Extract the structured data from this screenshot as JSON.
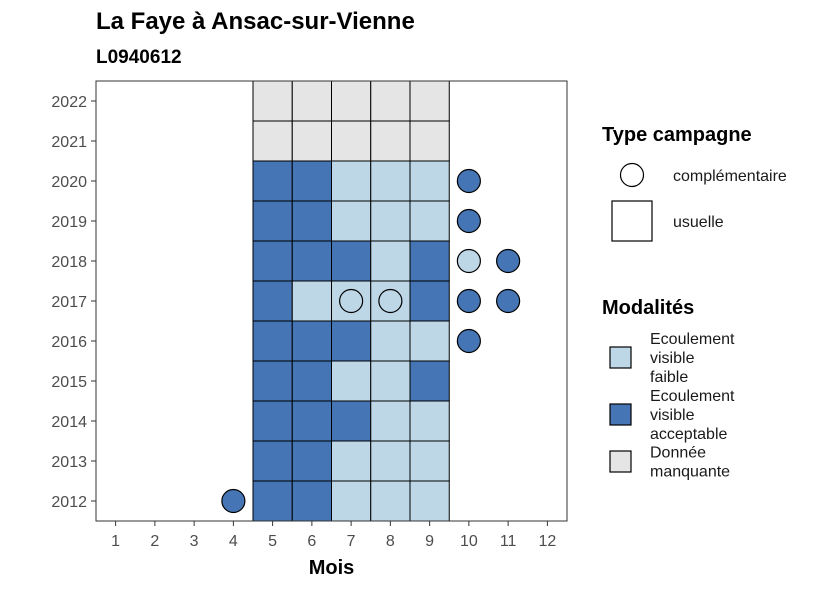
{
  "chart_data": {
    "type": "heatmap",
    "title": "La Faye à Ansac-sur-Vienne",
    "subtitle": "L0940612",
    "xlabel": "Mois",
    "ylabel": "",
    "x_ticks": [
      "1",
      "2",
      "3",
      "4",
      "5",
      "6",
      "7",
      "8",
      "9",
      "10",
      "11",
      "12"
    ],
    "y_ticks": [
      "2012",
      "2013",
      "2014",
      "2015",
      "2016",
      "2017",
      "2018",
      "2019",
      "2020",
      "2021",
      "2022"
    ],
    "xlim": [
      0.5,
      12.5
    ],
    "ylim": [
      2011.5,
      2022.5
    ],
    "grid": false,
    "legend_position": "right",
    "colors": {
      "Ecoulement visible faible": "#bdd7e7",
      "Ecoulement visible acceptable": "#4575b4",
      "Donnée manquante": "#e5e5e5"
    },
    "legends": {
      "shape": {
        "title": "Type campagne",
        "items": [
          {
            "label": "complémentaire",
            "shape": "circle"
          },
          {
            "label": "usuelle",
            "shape": "square"
          }
        ]
      },
      "fill": {
        "title": "Modalités",
        "items": [
          {
            "lines": [
              "Ecoulement",
              "visible",
              "faible"
            ],
            "key": "Ecoulement visible faible"
          },
          {
            "lines": [
              "Ecoulement",
              "visible",
              "acceptable"
            ],
            "key": "Ecoulement visible acceptable"
          },
          {
            "lines": [
              "Donnée",
              "manquante"
            ],
            "key": "Donnée manquante"
          }
        ]
      }
    },
    "usuelle": [
      {
        "year": 2012,
        "cells": [
          "Ecoulement visible acceptable",
          "Ecoulement visible acceptable",
          "Ecoulement visible faible",
          "Ecoulement visible faible",
          "Ecoulement visible faible"
        ]
      },
      {
        "year": 2013,
        "cells": [
          "Ecoulement visible acceptable",
          "Ecoulement visible acceptable",
          "Ecoulement visible faible",
          "Ecoulement visible faible",
          "Ecoulement visible faible"
        ]
      },
      {
        "year": 2014,
        "cells": [
          "Ecoulement visible acceptable",
          "Ecoulement visible acceptable",
          "Ecoulement visible acceptable",
          "Ecoulement visible faible",
          "Ecoulement visible faible"
        ]
      },
      {
        "year": 2015,
        "cells": [
          "Ecoulement visible acceptable",
          "Ecoulement visible acceptable",
          "Ecoulement visible faible",
          "Ecoulement visible faible",
          "Ecoulement visible acceptable"
        ]
      },
      {
        "year": 2016,
        "cells": [
          "Ecoulement visible acceptable",
          "Ecoulement visible acceptable",
          "Ecoulement visible acceptable",
          "Ecoulement visible faible",
          "Ecoulement visible faible"
        ]
      },
      {
        "year": 2017,
        "cells": [
          "Ecoulement visible acceptable",
          "Ecoulement visible faible",
          "Ecoulement visible faible",
          "Ecoulement visible faible",
          "Ecoulement visible acceptable"
        ]
      },
      {
        "year": 2018,
        "cells": [
          "Ecoulement visible acceptable",
          "Ecoulement visible acceptable",
          "Ecoulement visible acceptable",
          "Ecoulement visible faible",
          "Ecoulement visible acceptable"
        ]
      },
      {
        "year": 2019,
        "cells": [
          "Ecoulement visible acceptable",
          "Ecoulement visible acceptable",
          "Ecoulement visible faible",
          "Ecoulement visible faible",
          "Ecoulement visible faible"
        ]
      },
      {
        "year": 2020,
        "cells": [
          "Ecoulement visible acceptable",
          "Ecoulement visible acceptable",
          "Ecoulement visible faible",
          "Ecoulement visible faible",
          "Ecoulement visible faible"
        ]
      },
      {
        "year": 2021,
        "cells": [
          "Donnée manquante",
          "Donnée manquante",
          "Donnée manquante",
          "Donnée manquante",
          "Donnée manquante"
        ]
      },
      {
        "year": 2022,
        "cells": [
          "Donnée manquante",
          "Donnée manquante",
          "Donnée manquante",
          "Donnée manquante",
          "Donnée manquante"
        ]
      }
    ],
    "usuelle_months": [
      5,
      6,
      7,
      8,
      9
    ],
    "complementaire": [
      {
        "year": 2012,
        "month": 4,
        "value": "Ecoulement visible acceptable"
      },
      {
        "year": 2016,
        "month": 10,
        "value": "Ecoulement visible acceptable"
      },
      {
        "year": 2017,
        "month": 7,
        "value": "Ecoulement visible faible"
      },
      {
        "year": 2017,
        "month": 8,
        "value": "Ecoulement visible faible"
      },
      {
        "year": 2017,
        "month": 10,
        "value": "Ecoulement visible acceptable"
      },
      {
        "year": 2017,
        "month": 11,
        "value": "Ecoulement visible acceptable"
      },
      {
        "year": 2018,
        "month": 10,
        "value": "Ecoulement visible faible"
      },
      {
        "year": 2018,
        "month": 11,
        "value": "Ecoulement visible acceptable"
      },
      {
        "year": 2019,
        "month": 10,
        "value": "Ecoulement visible acceptable"
      },
      {
        "year": 2020,
        "month": 10,
        "value": "Ecoulement visible acceptable"
      }
    ]
  }
}
